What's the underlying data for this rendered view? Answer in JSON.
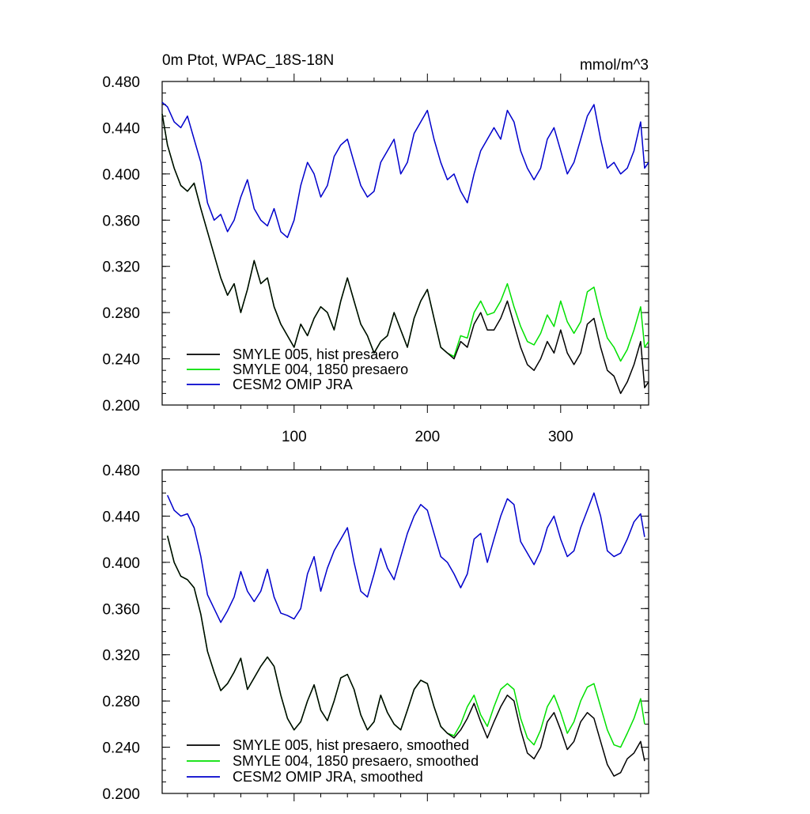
{
  "chart_data": [
    {
      "type": "line",
      "title_left": "0m Ptot, WPAC_18S-18N",
      "title_right": "mmol/m^3",
      "xlim": [
        1,
        366
      ],
      "ylim": [
        0.2,
        0.48
      ],
      "yticks": [
        "0.200",
        "0.240",
        "0.280",
        "0.320",
        "0.360",
        "0.400",
        "0.440",
        "0.480"
      ],
      "xticks": [
        "100",
        "200",
        "300"
      ],
      "grid": false,
      "legend_position": "lower-left",
      "series": [
        {
          "name": "SMYLE 005, hist presaero",
          "color": "#000000",
          "x": [
            1,
            5,
            10,
            15,
            20,
            25,
            30,
            35,
            40,
            45,
            50,
            55,
            60,
            65,
            70,
            75,
            80,
            85,
            90,
            95,
            100,
            105,
            110,
            115,
            120,
            125,
            130,
            135,
            140,
            145,
            150,
            155,
            160,
            165,
            170,
            175,
            180,
            185,
            190,
            195,
            200,
            205,
            210,
            215,
            220,
            225,
            230,
            235,
            240,
            245,
            250,
            255,
            260,
            265,
            270,
            275,
            280,
            285,
            290,
            295,
            300,
            305,
            310,
            315,
            320,
            325,
            330,
            335,
            340,
            345,
            350,
            355,
            360,
            363,
            366
          ],
          "values": [
            0.452,
            0.425,
            0.405,
            0.39,
            0.385,
            0.392,
            0.37,
            0.35,
            0.33,
            0.31,
            0.295,
            0.305,
            0.28,
            0.3,
            0.325,
            0.305,
            0.31,
            0.285,
            0.27,
            0.26,
            0.25,
            0.27,
            0.26,
            0.275,
            0.285,
            0.28,
            0.265,
            0.29,
            0.31,
            0.29,
            0.27,
            0.26,
            0.245,
            0.255,
            0.26,
            0.28,
            0.265,
            0.25,
            0.275,
            0.29,
            0.3,
            0.275,
            0.25,
            0.245,
            0.24,
            0.255,
            0.25,
            0.27,
            0.28,
            0.265,
            0.265,
            0.275,
            0.29,
            0.27,
            0.25,
            0.235,
            0.23,
            0.24,
            0.255,
            0.245,
            0.265,
            0.245,
            0.235,
            0.245,
            0.27,
            0.275,
            0.25,
            0.23,
            0.225,
            0.21,
            0.22,
            0.235,
            0.255,
            0.215,
            0.22
          ]
        },
        {
          "name": "SMYLE 004, 1850 presaero",
          "color": "#00e000",
          "x": [
            1,
            5,
            10,
            15,
            20,
            25,
            30,
            35,
            40,
            45,
            50,
            55,
            60,
            65,
            70,
            75,
            80,
            85,
            90,
            95,
            100,
            105,
            110,
            115,
            120,
            125,
            130,
            135,
            140,
            145,
            150,
            155,
            160,
            165,
            170,
            175,
            180,
            185,
            190,
            195,
            200,
            205,
            210,
            215,
            220,
            225,
            230,
            235,
            240,
            245,
            250,
            255,
            260,
            265,
            270,
            275,
            280,
            285,
            290,
            295,
            300,
            305,
            310,
            315,
            320,
            325,
            330,
            335,
            340,
            345,
            350,
            355,
            360,
            363,
            366
          ],
          "values": [
            0.452,
            0.425,
            0.405,
            0.39,
            0.385,
            0.392,
            0.37,
            0.35,
            0.33,
            0.31,
            0.295,
            0.305,
            0.28,
            0.3,
            0.325,
            0.305,
            0.31,
            0.285,
            0.27,
            0.26,
            0.25,
            0.27,
            0.26,
            0.275,
            0.285,
            0.28,
            0.265,
            0.29,
            0.31,
            0.29,
            0.27,
            0.26,
            0.245,
            0.255,
            0.26,
            0.28,
            0.265,
            0.25,
            0.275,
            0.29,
            0.3,
            0.275,
            0.25,
            0.245,
            0.242,
            0.26,
            0.258,
            0.28,
            0.29,
            0.278,
            0.28,
            0.29,
            0.305,
            0.285,
            0.268,
            0.255,
            0.252,
            0.262,
            0.278,
            0.268,
            0.29,
            0.272,
            0.262,
            0.272,
            0.298,
            0.302,
            0.278,
            0.258,
            0.25,
            0.238,
            0.248,
            0.265,
            0.285,
            0.25,
            0.255
          ]
        },
        {
          "name": "CESM2 OMIP JRA",
          "color": "#0000cc",
          "x": [
            1,
            5,
            10,
            15,
            20,
            25,
            30,
            35,
            40,
            45,
            50,
            55,
            60,
            65,
            70,
            75,
            80,
            85,
            90,
            95,
            100,
            105,
            110,
            115,
            120,
            125,
            130,
            135,
            140,
            145,
            150,
            155,
            160,
            165,
            170,
            175,
            180,
            185,
            190,
            195,
            200,
            205,
            210,
            215,
            220,
            225,
            230,
            235,
            240,
            245,
            250,
            255,
            260,
            265,
            270,
            275,
            280,
            285,
            290,
            295,
            300,
            305,
            310,
            315,
            320,
            325,
            330,
            335,
            340,
            345,
            350,
            355,
            360,
            363,
            366
          ],
          "values": [
            0.462,
            0.458,
            0.445,
            0.44,
            0.45,
            0.43,
            0.41,
            0.375,
            0.36,
            0.365,
            0.35,
            0.36,
            0.38,
            0.395,
            0.37,
            0.36,
            0.355,
            0.37,
            0.35,
            0.345,
            0.36,
            0.39,
            0.41,
            0.4,
            0.38,
            0.39,
            0.415,
            0.425,
            0.43,
            0.41,
            0.39,
            0.38,
            0.385,
            0.41,
            0.42,
            0.43,
            0.4,
            0.41,
            0.435,
            0.445,
            0.455,
            0.43,
            0.41,
            0.395,
            0.4,
            0.385,
            0.375,
            0.4,
            0.42,
            0.43,
            0.44,
            0.43,
            0.455,
            0.445,
            0.42,
            0.405,
            0.395,
            0.405,
            0.43,
            0.44,
            0.42,
            0.4,
            0.41,
            0.43,
            0.45,
            0.46,
            0.43,
            0.405,
            0.41,
            0.4,
            0.405,
            0.42,
            0.445,
            0.405,
            0.41
          ]
        }
      ]
    },
    {
      "type": "line",
      "xlim": [
        1,
        366
      ],
      "ylim": [
        0.2,
        0.48
      ],
      "yticks": [
        "0.200",
        "0.240",
        "0.280",
        "0.320",
        "0.360",
        "0.400",
        "0.440",
        "0.480"
      ],
      "grid": false,
      "legend_position": "lower-left",
      "series": [
        {
          "name": "SMYLE 005, hist presaero, smoothed",
          "color": "#000000",
          "x": [
            5,
            10,
            15,
            20,
            25,
            30,
            35,
            40,
            45,
            50,
            55,
            60,
            65,
            70,
            75,
            80,
            85,
            90,
            95,
            100,
            105,
            110,
            115,
            120,
            125,
            130,
            135,
            140,
            145,
            150,
            155,
            160,
            165,
            170,
            175,
            180,
            185,
            190,
            195,
            200,
            205,
            210,
            215,
            220,
            225,
            230,
            235,
            240,
            245,
            250,
            255,
            260,
            265,
            270,
            275,
            280,
            285,
            290,
            295,
            300,
            305,
            310,
            315,
            320,
            325,
            330,
            335,
            340,
            345,
            350,
            355,
            360,
            363
          ],
          "values": [
            0.423,
            0.4,
            0.388,
            0.385,
            0.378,
            0.355,
            0.323,
            0.305,
            0.289,
            0.295,
            0.305,
            0.317,
            0.29,
            0.3,
            0.31,
            0.318,
            0.31,
            0.285,
            0.265,
            0.255,
            0.262,
            0.28,
            0.294,
            0.272,
            0.263,
            0.28,
            0.3,
            0.303,
            0.29,
            0.268,
            0.255,
            0.262,
            0.285,
            0.27,
            0.26,
            0.255,
            0.272,
            0.29,
            0.298,
            0.295,
            0.275,
            0.258,
            0.252,
            0.248,
            0.255,
            0.265,
            0.278,
            0.262,
            0.248,
            0.262,
            0.275,
            0.285,
            0.28,
            0.255,
            0.235,
            0.23,
            0.24,
            0.262,
            0.27,
            0.255,
            0.238,
            0.245,
            0.262,
            0.27,
            0.265,
            0.245,
            0.225,
            0.215,
            0.218,
            0.23,
            0.235,
            0.245,
            0.228
          ]
        },
        {
          "name": "SMYLE 004, 1850 presaero, smoothed",
          "color": "#00e000",
          "x": [
            5,
            10,
            15,
            20,
            25,
            30,
            35,
            40,
            45,
            50,
            55,
            60,
            65,
            70,
            75,
            80,
            85,
            90,
            95,
            100,
            105,
            110,
            115,
            120,
            125,
            130,
            135,
            140,
            145,
            150,
            155,
            160,
            165,
            170,
            175,
            180,
            185,
            190,
            195,
            200,
            205,
            210,
            215,
            220,
            225,
            230,
            235,
            240,
            245,
            250,
            255,
            260,
            265,
            270,
            275,
            280,
            285,
            290,
            295,
            300,
            305,
            310,
            315,
            320,
            325,
            330,
            335,
            340,
            345,
            350,
            355,
            360,
            363
          ],
          "values": [
            0.423,
            0.4,
            0.388,
            0.385,
            0.378,
            0.355,
            0.323,
            0.305,
            0.289,
            0.295,
            0.305,
            0.317,
            0.29,
            0.3,
            0.31,
            0.318,
            0.31,
            0.285,
            0.265,
            0.255,
            0.262,
            0.28,
            0.294,
            0.272,
            0.263,
            0.28,
            0.3,
            0.303,
            0.29,
            0.268,
            0.255,
            0.262,
            0.285,
            0.27,
            0.26,
            0.255,
            0.272,
            0.29,
            0.298,
            0.295,
            0.275,
            0.258,
            0.252,
            0.25,
            0.26,
            0.275,
            0.285,
            0.268,
            0.258,
            0.275,
            0.29,
            0.295,
            0.29,
            0.265,
            0.248,
            0.242,
            0.255,
            0.275,
            0.285,
            0.27,
            0.252,
            0.262,
            0.28,
            0.292,
            0.295,
            0.275,
            0.255,
            0.242,
            0.24,
            0.252,
            0.265,
            0.282,
            0.26
          ]
        },
        {
          "name": "CESM2 OMIP JRA, smoothed",
          "color": "#0000cc",
          "x": [
            5,
            10,
            15,
            20,
            25,
            30,
            35,
            40,
            45,
            50,
            55,
            60,
            65,
            70,
            75,
            80,
            85,
            90,
            95,
            100,
            105,
            110,
            115,
            120,
            125,
            130,
            135,
            140,
            145,
            150,
            155,
            160,
            165,
            170,
            175,
            180,
            185,
            190,
            195,
            200,
            205,
            210,
            215,
            220,
            225,
            230,
            235,
            240,
            245,
            250,
            255,
            260,
            265,
            270,
            275,
            280,
            285,
            290,
            295,
            300,
            305,
            310,
            315,
            320,
            325,
            330,
            335,
            340,
            345,
            350,
            355,
            360,
            363
          ],
          "values": [
            0.458,
            0.445,
            0.44,
            0.442,
            0.43,
            0.405,
            0.372,
            0.36,
            0.348,
            0.358,
            0.37,
            0.392,
            0.375,
            0.366,
            0.375,
            0.394,
            0.37,
            0.356,
            0.354,
            0.351,
            0.36,
            0.39,
            0.405,
            0.375,
            0.395,
            0.41,
            0.42,
            0.43,
            0.4,
            0.375,
            0.37,
            0.39,
            0.412,
            0.395,
            0.385,
            0.405,
            0.425,
            0.44,
            0.45,
            0.445,
            0.425,
            0.405,
            0.4,
            0.39,
            0.378,
            0.39,
            0.42,
            0.425,
            0.4,
            0.42,
            0.44,
            0.455,
            0.45,
            0.418,
            0.408,
            0.398,
            0.41,
            0.43,
            0.44,
            0.42,
            0.405,
            0.41,
            0.43,
            0.445,
            0.46,
            0.44,
            0.41,
            0.405,
            0.408,
            0.42,
            0.435,
            0.442,
            0.422
          ]
        }
      ]
    }
  ]
}
